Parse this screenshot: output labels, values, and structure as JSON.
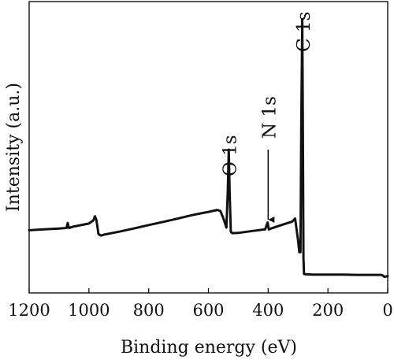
{
  "chart_data": {
    "type": "line",
    "title": "",
    "xlabel": "Binding energy (eV)",
    "ylabel": "Intensity (a.u.)",
    "xlim": [
      1200,
      0
    ],
    "x_reversed": true,
    "ylim": [
      0,
      100
    ],
    "x_ticks": [
      1200,
      1000,
      800,
      600,
      400,
      200,
      0
    ],
    "y_ticks_shown": false,
    "grid": false,
    "legend": "none",
    "line_color": "#111111",
    "series": [
      {
        "x": [
          1200,
          1150,
          1100,
          1075,
          1071,
          1067,
          1050,
          1000,
          985,
          980,
          975,
          968,
          960,
          955,
          950,
          900,
          850,
          800,
          750,
          700,
          650,
          600,
          570,
          560,
          550,
          540,
          535,
          532,
          529,
          525,
          520,
          500,
          450,
          410,
          402,
          398,
          390,
          350,
          320,
          310,
          300,
          296,
          292,
          289,
          286,
          284,
          282,
          280,
          275,
          250,
          200,
          150,
          100,
          50,
          20,
          10,
          0
        ],
        "y": [
          21.5,
          21.8,
          22.1,
          22.3,
          24.0,
          22.3,
          22.8,
          23.8,
          24.9,
          26.3,
          25.1,
          20.2,
          19.7,
          19.8,
          20.0,
          21.0,
          22.1,
          23.3,
          24.4,
          25.6,
          26.8,
          27.8,
          28.5,
          28.1,
          25.6,
          22.4,
          35.0,
          49.2,
          35.0,
          21.0,
          20.5,
          20.6,
          21.3,
          21.8,
          24.2,
          21.8,
          22.1,
          23.5,
          24.5,
          25.5,
          18.0,
          14.0,
          14.0,
          60.0,
          93.8,
          60.0,
          12.0,
          6.5,
          6.4,
          6.3,
          6.3,
          6.3,
          6.2,
          6.2,
          6.2,
          5.5,
          5.8
        ]
      }
    ],
    "annotations": [
      {
        "text": "O 1s",
        "x": 532,
        "arrow": false
      },
      {
        "text": "N 1s",
        "x": 400,
        "arrow": true
      },
      {
        "text": "C 1s",
        "x": 285,
        "arrow": false
      }
    ]
  }
}
